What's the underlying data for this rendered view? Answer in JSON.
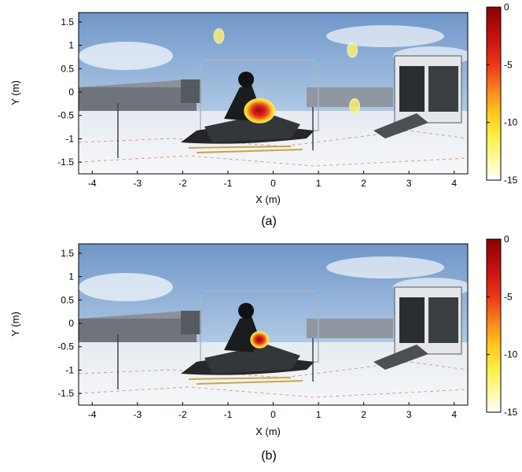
{
  "figure": {
    "panels": [
      {
        "caption": "(a)",
        "xlabel": "X (m)",
        "ylabel": "Y (m)",
        "xticks": [
          "-4",
          "-3",
          "-2",
          "-1",
          "0",
          "1",
          "2",
          "3",
          "4"
        ],
        "yticks": [
          "1.5",
          "1",
          "0.5",
          "0",
          "-0.5",
          "-1",
          "-1.5"
        ],
        "colorbar_ticks": [
          "0",
          "-5",
          "-10",
          "-15"
        ]
      },
      {
        "caption": "(b)",
        "xlabel": "X (m)",
        "ylabel": "Y (m)",
        "xticks": [
          "-4",
          "-3",
          "-2",
          "-1",
          "0",
          "1",
          "2",
          "3",
          "4"
        ],
        "yticks": [
          "1.5",
          "1",
          "0.5",
          "0",
          "-0.5",
          "-1",
          "-1.5"
        ],
        "colorbar_ticks": [
          "0",
          "-5",
          "-10",
          "-15"
        ]
      }
    ]
  },
  "chart_data": [
    {
      "type": "heatmap",
      "title": "",
      "xlabel": "X (m)",
      "ylabel": "Y (m)",
      "xlim": [
        -4.3,
        4.3
      ],
      "ylim": [
        -1.75,
        1.7
      ],
      "colorbar_range": [
        -15,
        0
      ],
      "sources": [
        {
          "x": -0.3,
          "y": -0.4,
          "peak": -1
        },
        {
          "x": 1.75,
          "y": 0.9,
          "peak": -12
        },
        {
          "x": 1.8,
          "y": -0.3,
          "peak": -12
        },
        {
          "x": -1.2,
          "y": 1.2,
          "peak": -14
        }
      ]
    },
    {
      "type": "heatmap",
      "title": "",
      "xlabel": "X (m)",
      "ylabel": "Y (m)",
      "xlim": [
        -4.3,
        4.3
      ],
      "ylim": [
        -1.75,
        1.7
      ],
      "colorbar_range": [
        -15,
        0
      ],
      "sources": [
        {
          "x": -0.3,
          "y": -0.35,
          "peak": -1
        }
      ]
    }
  ]
}
